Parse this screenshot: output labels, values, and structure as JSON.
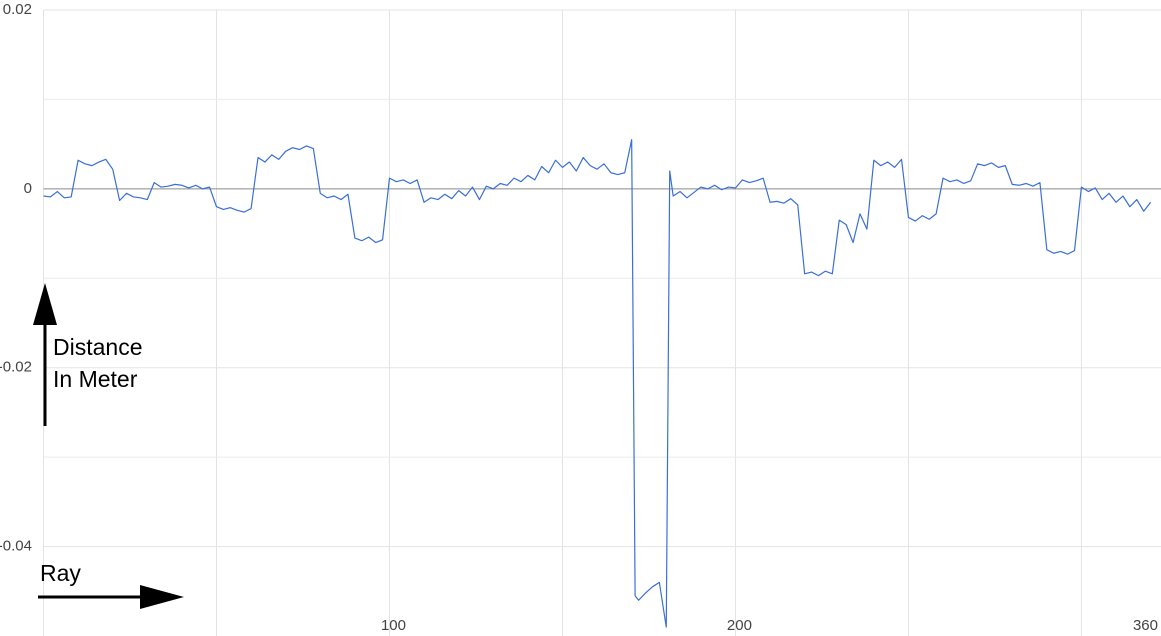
{
  "chart_data": {
    "type": "line",
    "x": [
      0,
      2,
      4,
      6,
      8,
      10,
      12,
      14,
      16,
      18,
      20,
      22,
      24,
      26,
      28,
      30,
      32,
      34,
      36,
      38,
      40,
      42,
      44,
      46,
      48,
      50,
      52,
      54,
      56,
      58,
      60,
      62,
      64,
      66,
      68,
      70,
      72,
      74,
      76,
      78,
      80,
      82,
      84,
      86,
      88,
      90,
      92,
      94,
      96,
      98,
      100,
      102,
      104,
      106,
      108,
      110,
      112,
      114,
      116,
      118,
      120,
      122,
      124,
      126,
      128,
      130,
      132,
      134,
      136,
      138,
      140,
      142,
      144,
      146,
      148,
      150,
      152,
      154,
      156,
      158,
      160,
      162,
      164,
      166,
      168,
      170,
      171,
      172,
      174,
      176,
      178,
      180,
      181,
      182,
      184,
      186,
      188,
      190,
      192,
      194,
      196,
      198,
      200,
      202,
      204,
      206,
      208,
      210,
      212,
      214,
      216,
      218,
      220,
      222,
      224,
      226,
      228,
      230,
      232,
      234,
      236,
      238,
      240,
      242,
      244,
      246,
      248,
      250,
      252,
      254,
      256,
      258,
      260,
      262,
      264,
      266,
      268,
      270,
      272,
      274,
      276,
      278,
      280,
      282,
      284,
      286,
      288,
      290,
      292,
      294,
      296,
      298,
      300,
      302,
      304,
      306,
      308,
      310,
      312,
      314,
      316,
      318,
      320
    ],
    "series": [
      {
        "color": "#3a6fd8",
        "values": [
          -0.0008,
          -0.0009,
          -0.0003,
          -0.001,
          -0.0009,
          0.0032,
          0.0028,
          0.0026,
          0.003,
          0.0033,
          0.0022,
          -0.0013,
          -0.0005,
          -0.0009,
          -0.001,
          -0.0012,
          0.0007,
          0.0002,
          0.0003,
          0.0005,
          0.0004,
          0.0001,
          0.0004,
          0.0,
          0.0002,
          -0.002,
          -0.0023,
          -0.0021,
          -0.0024,
          -0.0026,
          -0.0022,
          0.0035,
          0.003,
          0.0038,
          0.0033,
          0.0042,
          0.0046,
          0.0044,
          0.0048,
          0.0045,
          -0.0005,
          -0.001,
          -0.0008,
          -0.0012,
          -0.0006,
          -0.0055,
          -0.0058,
          -0.0054,
          -0.006,
          -0.0057,
          0.0012,
          0.0008,
          0.001,
          0.0006,
          0.001,
          -0.0015,
          -0.001,
          -0.0012,
          -0.0006,
          -0.0011,
          -0.0002,
          -0.0008,
          0.0002,
          -0.0012,
          0.0003,
          0.0,
          0.0006,
          0.0004,
          0.0012,
          0.0008,
          0.0015,
          0.001,
          0.0025,
          0.0018,
          0.0032,
          0.0024,
          0.003,
          0.002,
          0.0035,
          0.0026,
          0.0022,
          0.0028,
          0.0018,
          0.0016,
          0.0018,
          0.0055,
          -0.0455,
          -0.046,
          -0.0452,
          -0.0445,
          -0.044,
          -0.049,
          0.002,
          -0.0008,
          -0.0003,
          -0.001,
          -0.0004,
          0.0002,
          0.0,
          0.0004,
          -0.0001,
          0.0002,
          0.0001,
          0.001,
          0.0007,
          0.0009,
          0.0012,
          -0.0015,
          -0.0014,
          -0.0016,
          -0.0011,
          -0.0018,
          -0.0095,
          -0.0093,
          -0.0097,
          -0.0092,
          -0.0095,
          -0.0035,
          -0.004,
          -0.006,
          -0.0028,
          -0.0045,
          0.0032,
          0.0026,
          0.003,
          0.0024,
          0.0033,
          -0.0032,
          -0.0036,
          -0.003,
          -0.0034,
          -0.0028,
          0.0012,
          0.0008,
          0.001,
          0.0006,
          0.0009,
          0.0028,
          0.0026,
          0.0029,
          0.0024,
          0.0026,
          0.0005,
          0.0004,
          0.0006,
          0.0003,
          0.0007,
          -0.0068,
          -0.0072,
          -0.007,
          -0.0073,
          -0.0069,
          0.0002,
          -0.0003,
          0.0001,
          -0.0012,
          -0.0005,
          -0.0015,
          -0.0008,
          -0.002,
          -0.0012,
          -0.0025,
          -0.0015
        ]
      }
    ],
    "xlim": [
      0,
      323
    ],
    "xticks": [
      100,
      200
    ],
    "xgrid": [
      0,
      50,
      100,
      150,
      200,
      250,
      300
    ],
    "x_axis_end_label": "360",
    "ylim": [
      -0.05,
      0.02
    ],
    "yticks": [
      0.02,
      0,
      -0.02,
      -0.04
    ],
    "ygrid": [
      0.01,
      -0.01,
      -0.03
    ],
    "y_annotation": [
      "Distance",
      "In Meter"
    ],
    "x_annotation": "Ray"
  }
}
